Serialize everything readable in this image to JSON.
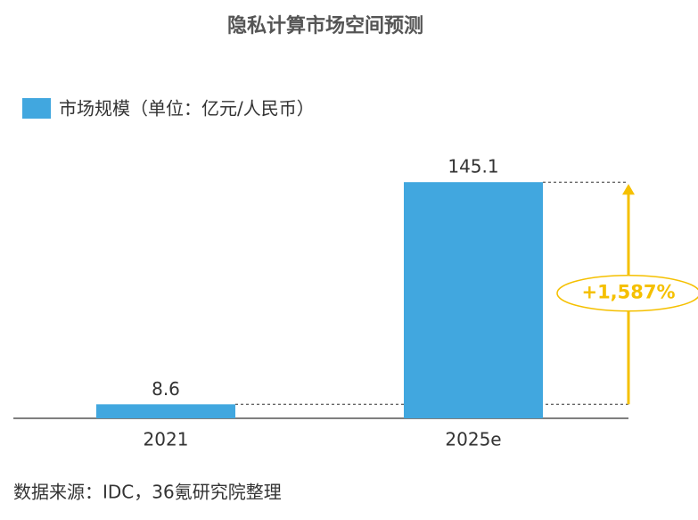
{
  "chart_data": {
    "type": "bar",
    "title": "隐私计算市场空间预测",
    "categories": [
      "2021",
      "2025e"
    ],
    "series": [
      {
        "name": "市场规模（单位：亿元/人民币）",
        "color": "#41a7df",
        "values": [
          8.6,
          145.1
        ]
      }
    ],
    "ylim": [
      0,
      160
    ],
    "annotation": "+1,587%",
    "source": "数据来源：IDC，36氪研究院整理"
  }
}
